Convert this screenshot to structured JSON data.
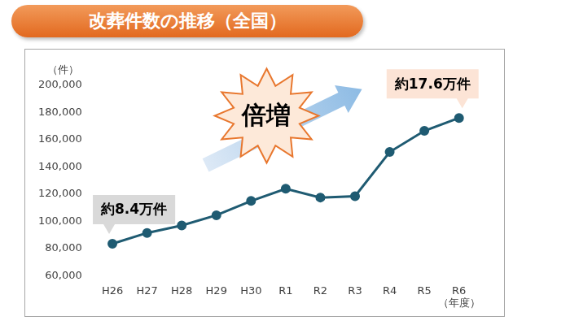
{
  "chart_data": {
    "type": "line",
    "title": "改葬件数の推移（全国）",
    "y_label": "（件）",
    "x_label": "（年度）",
    "categories": [
      "H26",
      "H27",
      "H28",
      "H29",
      "H30",
      "R1",
      "R2",
      "R3",
      "R4",
      "R5",
      "R6"
    ],
    "values": [
      83500,
      91500,
      97000,
      104500,
      115000,
      124000,
      117500,
      118500,
      151000,
      166500,
      176000
    ],
    "color": "#1f5b72",
    "marker": "circle",
    "ylim": [
      60000,
      200000
    ],
    "yticks": [
      {
        "value": 60000,
        "label": "60,000"
      },
      {
        "value": 80000,
        "label": "80,000"
      },
      {
        "value": 100000,
        "label": "100,000"
      },
      {
        "value": 120000,
        "label": "120,000"
      },
      {
        "value": 140000,
        "label": "140,000"
      },
      {
        "value": 160000,
        "label": "160,000"
      },
      {
        "value": 180000,
        "label": "180,000"
      },
      {
        "value": 200000,
        "label": "200,000"
      }
    ],
    "grid": false,
    "annotations": [
      "約8.4万件",
      "倍増",
      "約17.6万件"
    ]
  }
}
